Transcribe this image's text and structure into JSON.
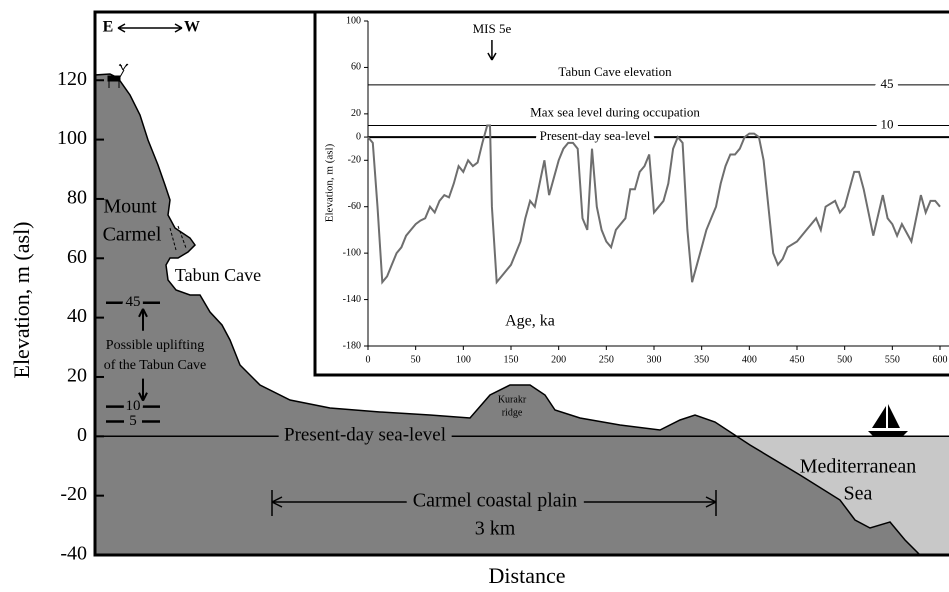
{
  "chart_data": [
    {
      "type": "profile",
      "ylabel": "Elevation, m (asl)",
      "xlabel": "Distance",
      "ylim": [
        -40,
        143
      ],
      "yticks": [
        -40,
        -20,
        0,
        20,
        40,
        60,
        80,
        100,
        120
      ],
      "reference_lines": [
        {
          "value": 0,
          "label": "Present-day sea-level"
        }
      ],
      "uplift_marks": [
        45,
        10,
        5
      ],
      "annotations": {
        "east": "E",
        "west": "W",
        "mount": [
          "Mount",
          "Carmel"
        ],
        "cave": "Tabun Cave",
        "uplift": [
          "Possible uplifting",
          "of the Tabun Cave"
        ],
        "ridge": [
          "Kurakr",
          "ridge"
        ],
        "plain": "Carmel coastal plain",
        "plain_width": "3 km",
        "sea": [
          "Mediterranean",
          "Sea"
        ]
      }
    },
    {
      "type": "line",
      "xlabel": "Age, ka",
      "ylabel": "Elevation, m (asl)",
      "xlim": [
        0,
        600
      ],
      "xticks": [
        0,
        50,
        100,
        150,
        200,
        250,
        300,
        350,
        400,
        450,
        500,
        550,
        600
      ],
      "ylim": [
        -180,
        100
      ],
      "yticks": [
        -180,
        -140,
        -100,
        -60,
        -20,
        0,
        20,
        60,
        100
      ],
      "color": "#6e6e6e",
      "reference_lines": [
        {
          "value": 45,
          "label": "Tabun Cave elevation",
          "value_printed": true
        },
        {
          "value": 10,
          "label": "Max sea level during occupation",
          "value_printed": true
        },
        {
          "value": 0,
          "label": "Present-day sea-level",
          "value_printed": false
        }
      ],
      "annotations": [
        {
          "text": "MIS 5e",
          "x": 130
        }
      ],
      "x": [
        0,
        5,
        10,
        15,
        20,
        25,
        30,
        35,
        40,
        45,
        50,
        55,
        60,
        65,
        70,
        75,
        80,
        85,
        90,
        95,
        100,
        105,
        110,
        115,
        120,
        125,
        128,
        130,
        135,
        140,
        145,
        150,
        155,
        160,
        165,
        170,
        175,
        180,
        185,
        190,
        195,
        200,
        205,
        210,
        215,
        220,
        225,
        230,
        235,
        240,
        245,
        250,
        255,
        260,
        265,
        270,
        275,
        280,
        285,
        290,
        295,
        300,
        305,
        310,
        315,
        320,
        325,
        330,
        335,
        340,
        345,
        350,
        355,
        360,
        365,
        370,
        375,
        380,
        385,
        390,
        395,
        400,
        405,
        410,
        415,
        420,
        425,
        430,
        435,
        440,
        450,
        460,
        470,
        475,
        480,
        490,
        495,
        500,
        510,
        515,
        520,
        530,
        540,
        545,
        550,
        555,
        560,
        570,
        580,
        585,
        590,
        595,
        600
      ],
      "values": [
        0,
        -5,
        -60,
        -125,
        -120,
        -110,
        -100,
        -95,
        -85,
        -80,
        -75,
        -72,
        -70,
        -60,
        -65,
        -55,
        -50,
        -52,
        -40,
        -25,
        -30,
        -20,
        -25,
        -22,
        -5,
        10,
        10,
        -60,
        -125,
        -120,
        -115,
        -110,
        -100,
        -90,
        -70,
        -55,
        -60,
        -40,
        -20,
        -50,
        -35,
        -20,
        -10,
        -5,
        -5,
        -10,
        -70,
        -80,
        -10,
        -60,
        -80,
        -90,
        -95,
        -80,
        -75,
        -70,
        -45,
        -45,
        -30,
        -25,
        -15,
        -65,
        -60,
        -55,
        -40,
        -10,
        0,
        -5,
        -80,
        -125,
        -110,
        -95,
        -80,
        -70,
        -60,
        -40,
        -25,
        -15,
        -15,
        -10,
        0,
        3,
        3,
        0,
        -20,
        -60,
        -100,
        -110,
        -105,
        -95,
        -90,
        -80,
        -70,
        -80,
        -60,
        -55,
        -65,
        -60,
        -30,
        -30,
        -45,
        -85,
        -50,
        -70,
        -75,
        -85,
        -75,
        -90,
        -50,
        -65,
        -55,
        -55,
        -60
      ]
    }
  ]
}
